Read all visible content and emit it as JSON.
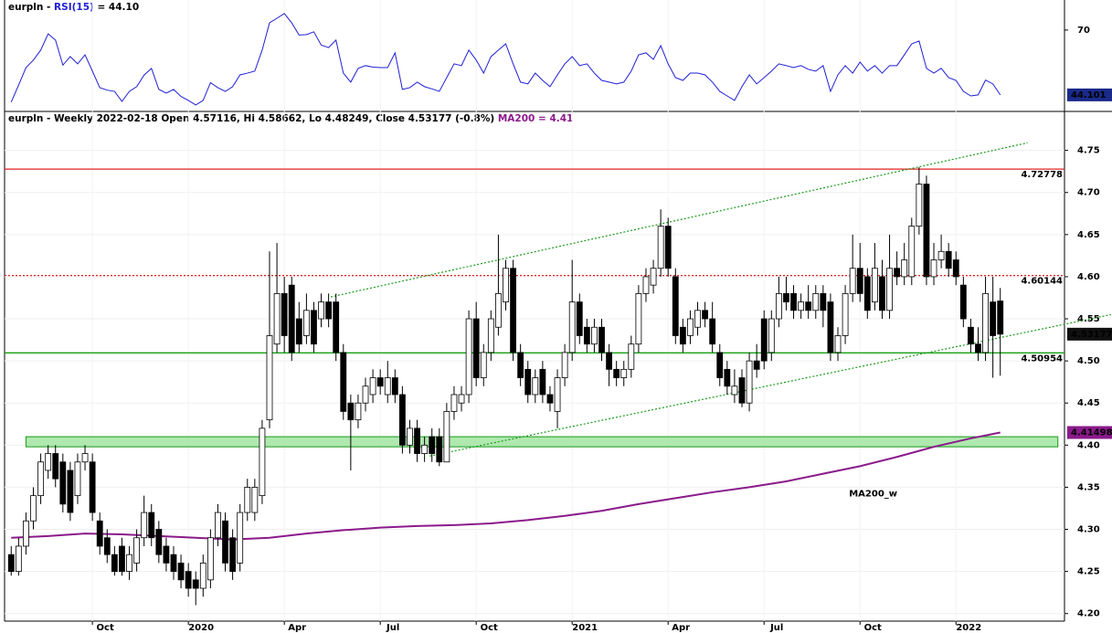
{
  "chart_data": [
    {
      "type": "line",
      "title_parts": [
        "eurpln - ",
        "RSI(15)",
        " = 44.10"
      ],
      "color": "#1f1fd6",
      "ylim": [
        37.5,
        82
      ],
      "yticks": [
        70
      ],
      "values": [
        41.2,
        48,
        55,
        58,
        62,
        68.5,
        66,
        56,
        59.4,
        56.5,
        60.1,
        53.6,
        47,
        46,
        45.5,
        41.5,
        45.5,
        47.4,
        52,
        54.7,
        46.3,
        44.8,
        46.3,
        43.5,
        41.9,
        40.1,
        41.9,
        49,
        47,
        45.5,
        47.4,
        52.1,
        52.8,
        53.6,
        62,
        72.9,
        74.7,
        76.6,
        72.9,
        68,
        68.2,
        69.3,
        64,
        63,
        66,
        52.8,
        49.2,
        54.7,
        55.8,
        55.2,
        55,
        55,
        60.9,
        46.3,
        47,
        49.2,
        47.4,
        46.5,
        45.5,
        51,
        56.5,
        55.8,
        62,
        58,
        52.8,
        59.4,
        62,
        64.5,
        56.5,
        49.2,
        48.5,
        52.8,
        49.9,
        47.4,
        52.1,
        56.5,
        59.4,
        55.8,
        56.5,
        52.8,
        49.9,
        49.2,
        48.5,
        49.2,
        53.6,
        60.1,
        60.9,
        58.3,
        63.8,
        56.5,
        51,
        49.9,
        52.8,
        52.8,
        52.1,
        49.2,
        45.5,
        43.7,
        41.9,
        47.4,
        52.1,
        48.5,
        51,
        53.6,
        56.5,
        55.8,
        55,
        55.8,
        54.3,
        53.6,
        55.8,
        45.5,
        52.1,
        55.8,
        52.8,
        57.2,
        53.6,
        55.8,
        52.8,
        55.8,
        55.8,
        60.1,
        64.5,
        65.6,
        54.7,
        52.8,
        54.7,
        51,
        49.9,
        45.5,
        43.7,
        44.1,
        50,
        48.5,
        44.101
      ]
    },
    {
      "type": "candlestick",
      "title_parts": [
        "eurpln - Weekly 2022-02-18 Open 4.57116, Hi 4.58662, Lo 4.48249, Close 4.53177 (-0.8%) ",
        "MA200 = 4.41"
      ],
      "xlim": [
        -0.9,
        142.7
      ],
      "xticks": [
        {
          "value": 11,
          "label": "Oct"
        },
        {
          "value": 24,
          "label": "2020"
        },
        {
          "value": 37,
          "label": "Apr"
        },
        {
          "value": 50,
          "label": "Jul"
        },
        {
          "value": 63,
          "label": "Oct"
        },
        {
          "value": 76,
          "label": "2021"
        },
        {
          "value": 89,
          "label": "Apr"
        },
        {
          "value": 102,
          "label": "Jul"
        },
        {
          "value": 115,
          "label": "Oct"
        },
        {
          "value": 128,
          "label": "2022"
        }
      ],
      "ylim": [
        4.191,
        4.793
      ],
      "yticks": [
        {
          "value": 4.2,
          "label": "4.20"
        },
        4.25,
        {
          "value": 4.3,
          "label": "4.30"
        },
        4.35,
        {
          "value": 4.4,
          "label": "4.40"
        },
        4.45,
        {
          "value": 4.5,
          "label": "4.50"
        },
        4.55,
        {
          "value": 4.6,
          "label": "4.60"
        },
        4.65,
        {
          "value": 4.7,
          "label": "4.70"
        },
        4.75
      ],
      "candles": [
        [
          4.27,
          4.28,
          4.245,
          4.25
        ],
        [
          4.25,
          4.29,
          4.245,
          4.28
        ],
        [
          4.28,
          4.32,
          4.27,
          4.31
        ],
        [
          4.31,
          4.35,
          4.3,
          4.34
        ],
        [
          4.34,
          4.39,
          4.33,
          4.38
        ],
        [
          4.37,
          4.4,
          4.36,
          4.39
        ],
        [
          4.39,
          4.4,
          4.35,
          4.36
        ],
        [
          4.38,
          4.39,
          4.32,
          4.33
        ],
        [
          4.37,
          4.38,
          4.31,
          4.32
        ],
        [
          4.34,
          4.39,
          4.33,
          4.38
        ],
        [
          4.38,
          4.4,
          4.37,
          4.39
        ],
        [
          4.38,
          4.39,
          4.31,
          4.32
        ],
        [
          4.31,
          4.32,
          4.27,
          4.28
        ],
        [
          4.29,
          4.3,
          4.26,
          4.27
        ],
        [
          4.27,
          4.28,
          4.245,
          4.25
        ],
        [
          4.28,
          4.29,
          4.245,
          4.25
        ],
        [
          4.25,
          4.28,
          4.24,
          4.27
        ],
        [
          4.26,
          4.3,
          4.25,
          4.29
        ],
        [
          4.29,
          4.34,
          4.28,
          4.32
        ],
        [
          4.32,
          4.33,
          4.28,
          4.29
        ],
        [
          4.3,
          4.31,
          4.26,
          4.27
        ],
        [
          4.28,
          4.29,
          4.25,
          4.26
        ],
        [
          4.27,
          4.28,
          4.24,
          4.25
        ],
        [
          4.26,
          4.27,
          4.23,
          4.24
        ],
        [
          4.25,
          4.26,
          4.22,
          4.23
        ],
        [
          4.24,
          4.25,
          4.21,
          4.23
        ],
        [
          4.23,
          4.27,
          4.22,
          4.26
        ],
        [
          4.24,
          4.3,
          4.23,
          4.29
        ],
        [
          4.29,
          4.33,
          4.28,
          4.32
        ],
        [
          4.31,
          4.32,
          4.25,
          4.26
        ],
        [
          4.29,
          4.3,
          4.24,
          4.25
        ],
        [
          4.26,
          4.33,
          4.25,
          4.32
        ],
        [
          4.32,
          4.36,
          4.31,
          4.35
        ],
        [
          4.32,
          4.36,
          4.31,
          4.35
        ],
        [
          4.34,
          4.43,
          4.33,
          4.42
        ],
        [
          4.43,
          4.63,
          4.42,
          4.53
        ],
        [
          4.52,
          4.64,
          4.51,
          4.58
        ],
        [
          4.58,
          4.6,
          4.51,
          4.53
        ],
        [
          4.59,
          4.6,
          4.5,
          4.51
        ],
        [
          4.55,
          4.57,
          4.51,
          4.52
        ],
        [
          4.53,
          4.58,
          4.52,
          4.56
        ],
        [
          4.56,
          4.57,
          4.51,
          4.52
        ],
        [
          4.55,
          4.58,
          4.54,
          4.57
        ],
        [
          4.57,
          4.58,
          4.54,
          4.55
        ],
        [
          4.57,
          4.58,
          4.5,
          4.51
        ],
        [
          4.51,
          4.52,
          4.43,
          4.44
        ],
        [
          4.45,
          4.46,
          4.37,
          4.43
        ],
        [
          4.43,
          4.46,
          4.42,
          4.45
        ],
        [
          4.45,
          4.48,
          4.44,
          4.47
        ],
        [
          4.46,
          4.49,
          4.45,
          4.48
        ],
        [
          4.48,
          4.49,
          4.46,
          4.47
        ],
        [
          4.46,
          4.5,
          4.45,
          4.48
        ],
        [
          4.48,
          4.49,
          4.45,
          4.46
        ],
        [
          4.46,
          4.47,
          4.39,
          4.4
        ],
        [
          4.4,
          4.43,
          4.39,
          4.42
        ],
        [
          4.42,
          4.43,
          4.38,
          4.39
        ],
        [
          4.39,
          4.41,
          4.38,
          4.4
        ],
        [
          4.41,
          4.42,
          4.38,
          4.39
        ],
        [
          4.41,
          4.42,
          4.375,
          4.38
        ],
        [
          4.38,
          4.45,
          4.38,
          4.44
        ],
        [
          4.44,
          4.47,
          4.43,
          4.46
        ],
        [
          4.45,
          4.47,
          4.44,
          4.46
        ],
        [
          4.46,
          4.56,
          4.45,
          4.55
        ],
        [
          4.55,
          4.57,
          4.47,
          4.48
        ],
        [
          4.48,
          4.52,
          4.47,
          4.51
        ],
        [
          4.51,
          4.56,
          4.5,
          4.55
        ],
        [
          4.54,
          4.65,
          4.53,
          4.58
        ],
        [
          4.57,
          4.62,
          4.56,
          4.61
        ],
        [
          4.61,
          4.62,
          4.5,
          4.51
        ],
        [
          4.51,
          4.52,
          4.47,
          4.48
        ],
        [
          4.49,
          4.5,
          4.45,
          4.46
        ],
        [
          4.46,
          4.49,
          4.45,
          4.48
        ],
        [
          4.49,
          4.5,
          4.45,
          4.46
        ],
        [
          4.46,
          4.47,
          4.44,
          4.45
        ],
        [
          4.44,
          4.49,
          4.42,
          4.48
        ],
        [
          4.48,
          4.52,
          4.47,
          4.51
        ],
        [
          4.51,
          4.62,
          4.5,
          4.57
        ],
        [
          4.57,
          4.58,
          4.52,
          4.53
        ],
        [
          4.54,
          4.55,
          4.51,
          4.52
        ],
        [
          4.52,
          4.55,
          4.51,
          4.54
        ],
        [
          4.54,
          4.55,
          4.5,
          4.51
        ],
        [
          4.51,
          4.52,
          4.47,
          4.49
        ],
        [
          4.49,
          4.5,
          4.47,
          4.48
        ],
        [
          4.48,
          4.5,
          4.47,
          4.49
        ],
        [
          4.49,
          4.53,
          4.48,
          4.52
        ],
        [
          4.52,
          4.59,
          4.51,
          4.58
        ],
        [
          4.58,
          4.61,
          4.57,
          4.6
        ],
        [
          4.59,
          4.62,
          4.58,
          4.61
        ],
        [
          4.61,
          4.68,
          4.6,
          4.66
        ],
        [
          4.66,
          4.67,
          4.6,
          4.61
        ],
        [
          4.6,
          4.61,
          4.52,
          4.53
        ],
        [
          4.54,
          4.55,
          4.51,
          4.52
        ],
        [
          4.53,
          4.56,
          4.52,
          4.55
        ],
        [
          4.54,
          4.57,
          4.53,
          4.56
        ],
        [
          4.56,
          4.57,
          4.54,
          4.55
        ],
        [
          4.55,
          4.57,
          4.51,
          4.52
        ],
        [
          4.51,
          4.52,
          4.47,
          4.48
        ],
        [
          4.49,
          4.5,
          4.46,
          4.47
        ],
        [
          4.46,
          4.49,
          4.45,
          4.47
        ],
        [
          4.48,
          4.49,
          4.445,
          4.45
        ],
        [
          4.45,
          4.51,
          4.44,
          4.5
        ],
        [
          4.5,
          4.52,
          4.48,
          4.49
        ],
        [
          4.55,
          4.56,
          4.49,
          4.5
        ],
        [
          4.51,
          4.56,
          4.5,
          4.55
        ],
        [
          4.55,
          4.6,
          4.54,
          4.58
        ],
        [
          4.58,
          4.6,
          4.56,
          4.57
        ],
        [
          4.58,
          4.59,
          4.55,
          4.56
        ],
        [
          4.56,
          4.58,
          4.55,
          4.57
        ],
        [
          4.57,
          4.59,
          4.55,
          4.56
        ],
        [
          4.56,
          4.59,
          4.55,
          4.58
        ],
        [
          4.58,
          4.59,
          4.54,
          4.56
        ],
        [
          4.57,
          4.58,
          4.5,
          4.51
        ],
        [
          4.51,
          4.54,
          4.5,
          4.53
        ],
        [
          4.53,
          4.59,
          4.52,
          4.58
        ],
        [
          4.58,
          4.65,
          4.57,
          4.61
        ],
        [
          4.61,
          4.64,
          4.57,
          4.58
        ],
        [
          4.6,
          4.61,
          4.55,
          4.56
        ],
        [
          4.57,
          4.64,
          4.56,
          4.61
        ],
        [
          4.6,
          4.62,
          4.55,
          4.56
        ],
        [
          4.56,
          4.65,
          4.55,
          4.61
        ],
        [
          4.61,
          4.63,
          4.59,
          4.6
        ],
        [
          4.6,
          4.64,
          4.59,
          4.62
        ],
        [
          4.6,
          4.67,
          4.59,
          4.66
        ],
        [
          4.66,
          4.73,
          4.65,
          4.71
        ],
        [
          4.71,
          4.72,
          4.59,
          4.6
        ],
        [
          4.6,
          4.64,
          4.59,
          4.62
        ],
        [
          4.62,
          4.65,
          4.61,
          4.63
        ],
        [
          4.63,
          4.64,
          4.6,
          4.61
        ],
        [
          4.62,
          4.63,
          4.59,
          4.6
        ],
        [
          4.59,
          4.6,
          4.54,
          4.55
        ],
        [
          4.54,
          4.55,
          4.51,
          4.52
        ],
        [
          4.52,
          4.54,
          4.5,
          4.51
        ],
        [
          4.51,
          4.6,
          4.5,
          4.58
        ],
        [
          4.57,
          4.6,
          4.48,
          4.53
        ],
        [
          4.57116,
          4.58662,
          4.48249,
          4.53177
        ]
      ],
      "hlines": [
        {
          "value": 4.72778,
          "color": "#e02020",
          "style": "solid"
        },
        {
          "value": 4.60144,
          "color": "#e02020",
          "style": "dotted"
        },
        {
          "value": 4.50954,
          "color": "#14a014",
          "style": "solid"
        }
      ],
      "zone": {
        "ylim": [
          4.398,
          4.41
        ],
        "xlim": [
          2,
          141.8
        ],
        "color": "#9be39b",
        "edge": "#1a9a1a"
      },
      "trendlines": [
        {
          "x": [
            43.3,
            137.7
          ],
          "y": [
            4.576,
            4.759
          ],
          "color": "#1a9a1a"
        },
        {
          "x": [
            56.7,
            149
          ],
          "y": [
            4.387,
            4.555
          ],
          "color": "#1a9a1a"
        }
      ],
      "ma": {
        "name": "MA200_w",
        "color": "#8b1a8b",
        "x": [
          0,
          5,
          10,
          15,
          20,
          25,
          30,
          35,
          40,
          45,
          50,
          55,
          60,
          65,
          70,
          75,
          80,
          85,
          90,
          95,
          100,
          105,
          110,
          115,
          120,
          125,
          130,
          134
        ],
        "values": [
          4.29,
          4.292,
          4.295,
          4.294,
          4.292,
          4.29,
          4.288,
          4.29,
          4.295,
          4.299,
          4.302,
          4.304,
          4.305,
          4.307,
          4.311,
          4.316,
          4.322,
          4.33,
          4.337,
          4.344,
          4.35,
          4.357,
          4.366,
          4.375,
          4.386,
          4.398,
          4.408,
          4.41498
        ]
      }
    }
  ]
}
